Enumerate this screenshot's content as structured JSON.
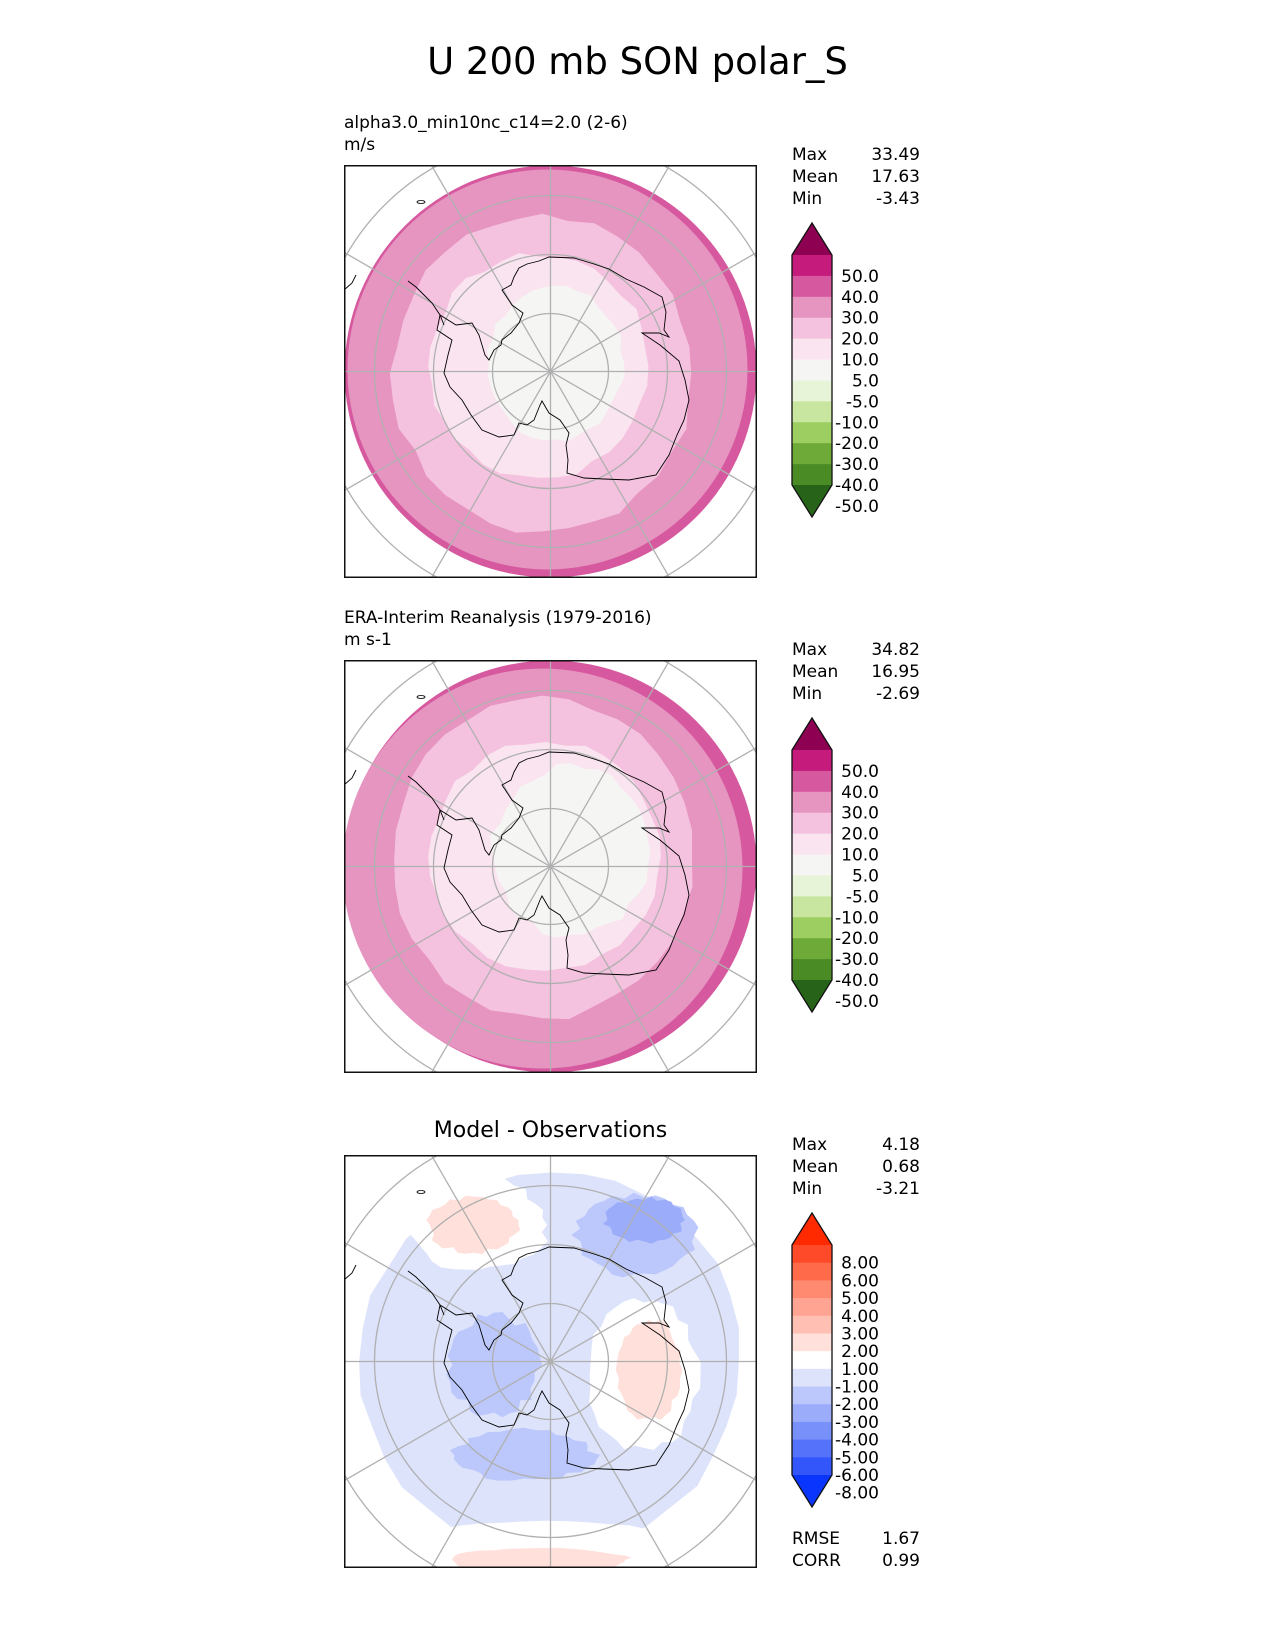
{
  "figure_title": "U 200 mb SON polar_S",
  "chart_data": [
    {
      "type": "heatmap",
      "projection": "south-polar-stereographic",
      "title": "alpha3.0_min10nc_c14=2.0 (2-6)",
      "units": "m/s",
      "stats": [
        {
          "label": "Max",
          "value": "33.49"
        },
        {
          "label": "Mean",
          "value": "17.63"
        },
        {
          "label": "Min",
          "value": "-3.43"
        }
      ],
      "colorbar": {
        "levels": [
          "50.0",
          "40.0",
          "30.0",
          "20.0",
          "10.0",
          "5.0",
          "-5.0",
          "-10.0",
          "-20.0",
          "-30.0",
          "-40.0",
          "-50.0"
        ],
        "colors": [
          "#8e0152",
          "#c51b7d",
          "#d6589e",
          "#e694c0",
          "#f4c2df",
          "#fae4ef",
          "#f5f5f4",
          "#e8f4d8",
          "#c8e6a0",
          "#9dce62",
          "#6eaa38",
          "#4b8b25",
          "#276419"
        ],
        "extend": "both"
      },
      "field_bands": [
        {
          "level_index": 6,
          "description": "polar cap (−5 to 5)"
        },
        {
          "level_index": 5,
          "description": "5 to 10 over interior"
        },
        {
          "level_index": 4,
          "description": "10 to 20 ring"
        },
        {
          "level_index": 3,
          "description": "20 to 30 outer ring"
        },
        {
          "level_index": 2,
          "description": "30 to 40 fringe at outer edge"
        }
      ]
    },
    {
      "type": "heatmap",
      "projection": "south-polar-stereographic",
      "title": "ERA-Interim Reanalysis (1979-2016)",
      "units": "m s-1",
      "stats": [
        {
          "label": "Max",
          "value": "34.82"
        },
        {
          "label": "Mean",
          "value": "16.95"
        },
        {
          "label": "Min",
          "value": "-2.69"
        }
      ],
      "colorbar": {
        "levels": [
          "50.0",
          "40.0",
          "30.0",
          "20.0",
          "10.0",
          "5.0",
          "-5.0",
          "-10.0",
          "-20.0",
          "-30.0",
          "-40.0",
          "-50.0"
        ],
        "colors": [
          "#8e0152",
          "#c51b7d",
          "#d6589e",
          "#e694c0",
          "#f4c2df",
          "#fae4ef",
          "#f5f5f4",
          "#e8f4d8",
          "#c8e6a0",
          "#9dce62",
          "#6eaa38",
          "#4b8b25",
          "#276419"
        ],
        "extend": "both"
      }
    },
    {
      "type": "heatmap",
      "projection": "south-polar-stereographic",
      "title": "Model - Observations",
      "stats": [
        {
          "label": "Max",
          "value": "4.18"
        },
        {
          "label": "Mean",
          "value": "0.68"
        },
        {
          "label": "Min",
          "value": "-3.21"
        }
      ],
      "metrics": [
        {
          "label": "RMSE",
          "value": "1.67"
        },
        {
          "label": "CORR",
          "value": "0.99"
        }
      ],
      "colorbar": {
        "levels": [
          "8.00",
          "6.00",
          "5.00",
          "4.00",
          "3.00",
          "2.00",
          "1.00",
          "-1.00",
          "-2.00",
          "-3.00",
          "-4.00",
          "-5.00",
          "-6.00",
          "-8.00"
        ],
        "colors": [
          "#ff2a00",
          "#ff4a2a",
          "#ff6a4a",
          "#ff8a70",
          "#ffa493",
          "#ffbfb2",
          "#ffe0da",
          "#ffffff",
          "#dde3fb",
          "#bcc8fb",
          "#9aacfa",
          "#7890fa",
          "#5572fa",
          "#3356fb",
          "#0a35fc"
        ],
        "extend": "both"
      }
    }
  ]
}
